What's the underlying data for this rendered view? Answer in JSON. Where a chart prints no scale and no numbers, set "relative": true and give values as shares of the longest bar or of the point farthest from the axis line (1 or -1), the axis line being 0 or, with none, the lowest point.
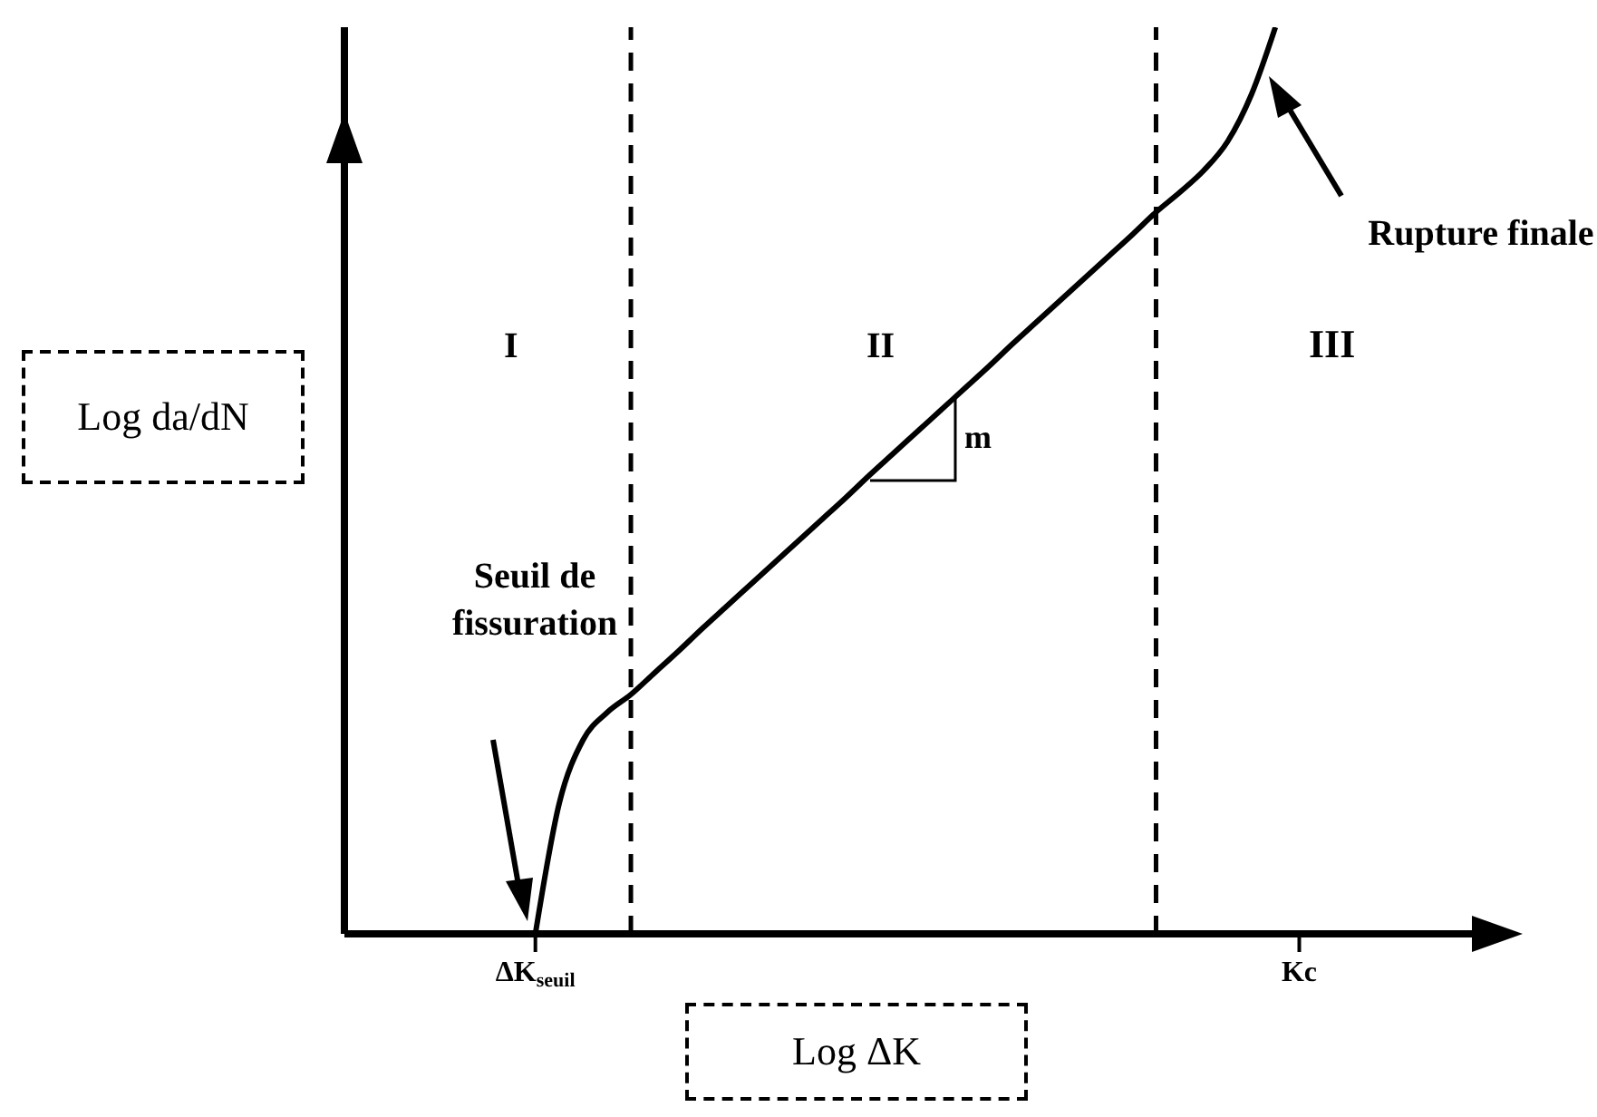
{
  "chart_data": {
    "type": "line",
    "relative": true,
    "xlabel": "Log ΔK",
    "ylabel": "Log da/dN",
    "categories": [
      null,
      null,
      null,
      null,
      null,
      null,
      null,
      null,
      "ΔK$_{seuil}$",
      null,
      null,
      null,
      null,
      null,
      null,
      null,
      null,
      null,
      null,
      null,
      null,
      null,
      null,
      null,
      null,
      null,
      null,
      null,
      null,
      null,
      null,
      null,
      null,
      null,
      null,
      null,
      null,
      null,
      null,
      null,
      "Kc",
      null,
      null,
      null,
      null,
      null,
      null,
      null,
      null
    ],
    "series": [
      {
        "color": "#000000",
        "values": [
          null,
          null,
          null,
          null,
          null,
          null,
          null,
          null,
          0,
          0.144,
          0.214,
          0.244,
          0.264,
          0.288,
          0.312,
          0.337,
          0.361,
          0.385,
          0.409,
          0.433,
          0.457,
          0.481,
          0.506,
          0.53,
          0.554,
          0.578,
          0.602,
          0.626,
          0.651,
          0.675,
          0.699,
          0.723,
          0.747,
          0.771,
          0.796,
          0.818,
          0.842,
          0.874,
          0.926,
          1,
          null,
          null,
          null,
          null,
          null,
          null,
          null,
          null,
          null
        ]
      }
    ],
    "annotations": [
      "I",
      "II",
      "III",
      "m",
      "Seuil de fissuration",
      "Rupture finale"
    ],
    "marker": "none",
    "line_style": "solid",
    "legend": false
  }
}
